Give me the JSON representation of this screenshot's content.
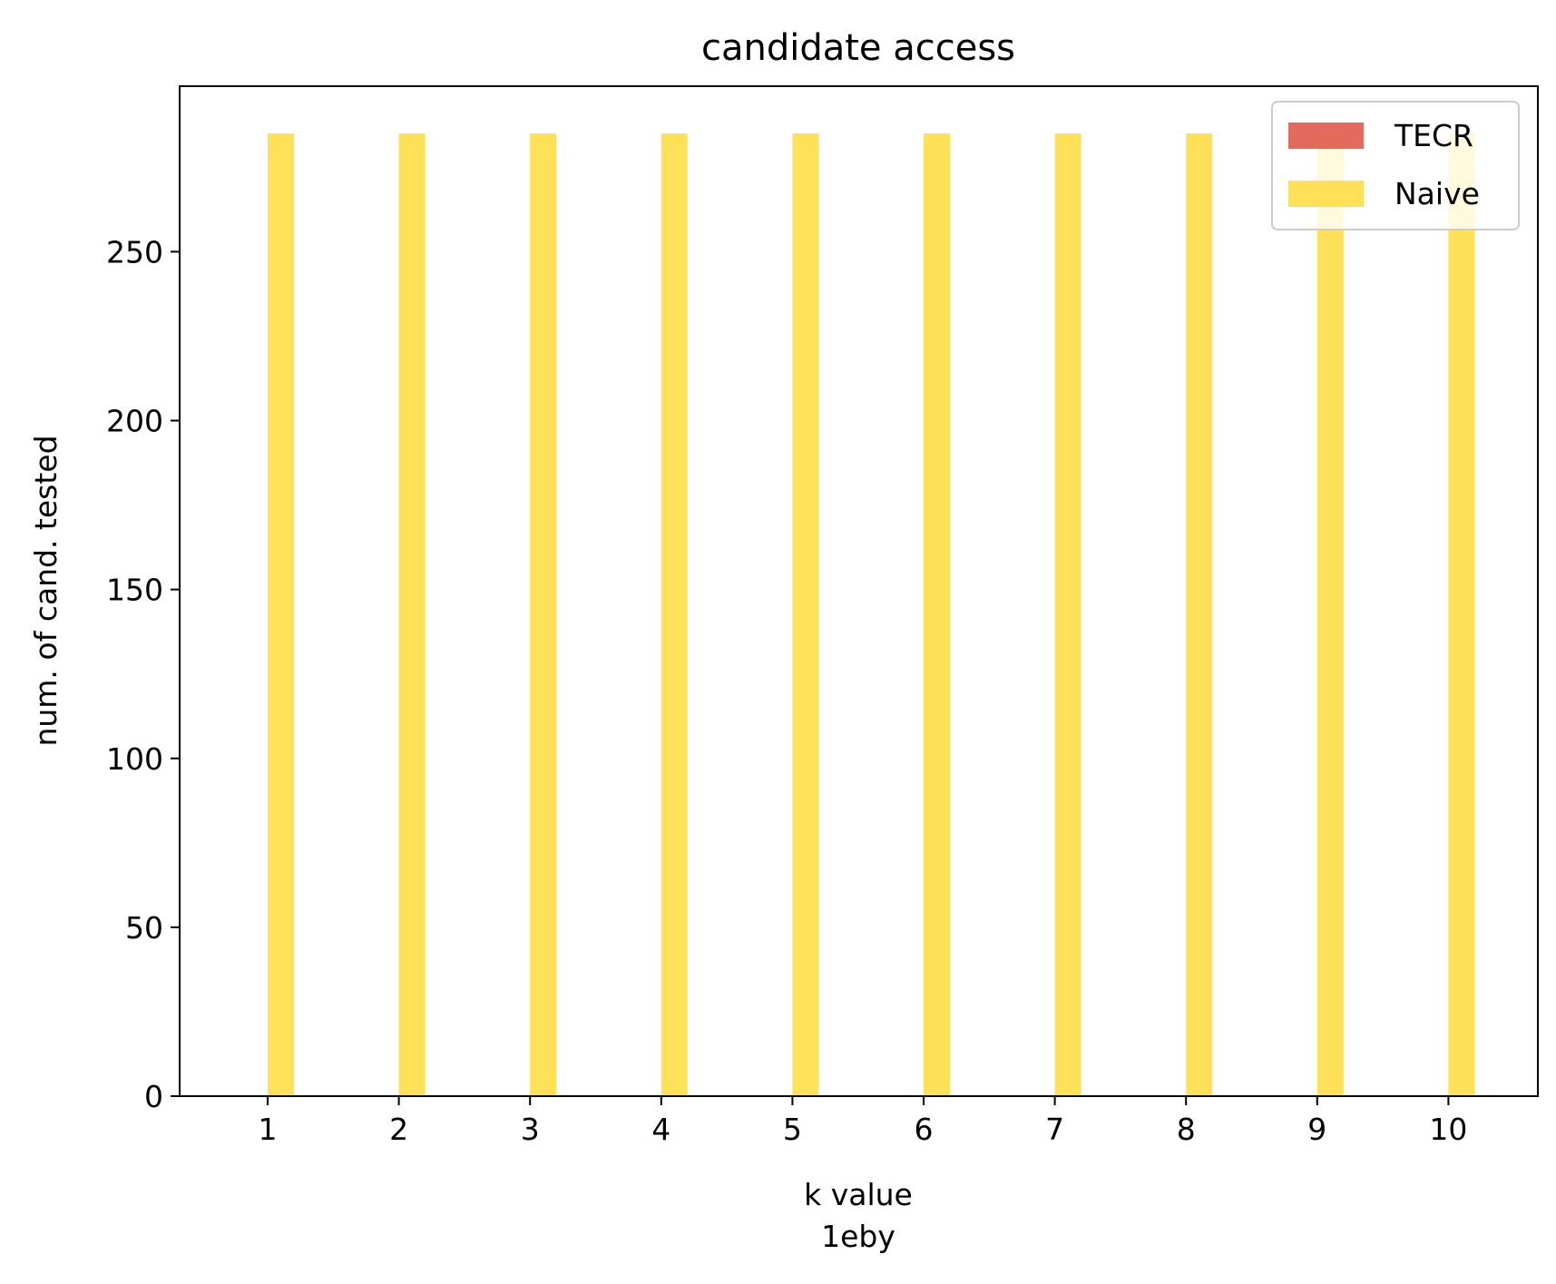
{
  "chart_data": {
    "type": "bar",
    "title": "candidate access",
    "xlabel": "k value",
    "xlabel_sub": "1eby",
    "ylabel": "num. of cand. tested",
    "categories": [
      "1",
      "2",
      "3",
      "4",
      "5",
      "6",
      "7",
      "8",
      "9",
      "10"
    ],
    "series": [
      {
        "name": "TECR",
        "color": "#e05a4a",
        "values": [
          0,
          0,
          0,
          0,
          0,
          0,
          0,
          0,
          0,
          0
        ]
      },
      {
        "name": "Naive",
        "color": "#ffdd47",
        "values": [
          285,
          285,
          285,
          285,
          285,
          285,
          285,
          285,
          285,
          285
        ]
      }
    ],
    "yticks": [
      0,
      50,
      100,
      150,
      200,
      250
    ],
    "ylim": [
      0,
      299
    ],
    "grid": false,
    "legend_position": "top-right"
  }
}
